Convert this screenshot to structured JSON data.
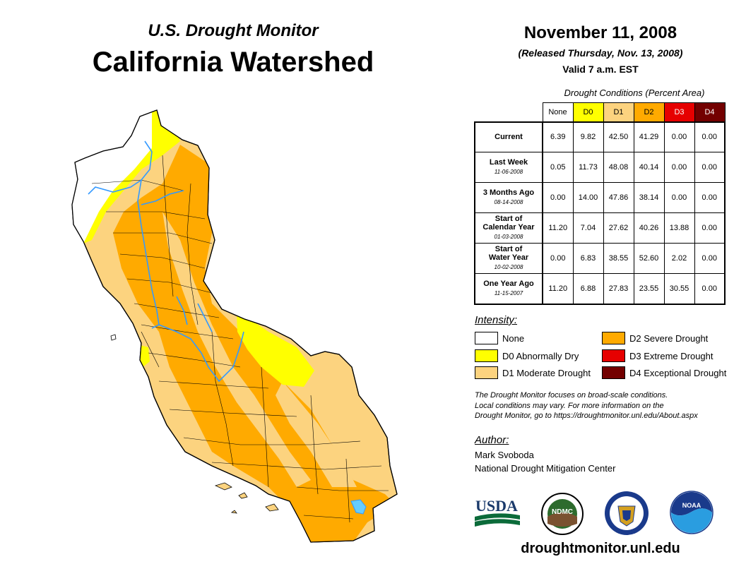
{
  "header": {
    "subtitle": "U.S. Drought Monitor",
    "title": "California Watershed",
    "date": "November 11, 2008",
    "released": "(Released Thursday, Nov. 13, 2008)",
    "valid": "Valid 7 a.m. EST"
  },
  "table": {
    "caption": "Drought Conditions (Percent Area)",
    "columns": [
      "None",
      "D0",
      "D1",
      "D2",
      "D3",
      "D4"
    ],
    "rows": [
      {
        "label": "Current",
        "label2": "",
        "date": "",
        "values": [
          "6.39",
          "9.82",
          "42.50",
          "41.29",
          "0.00",
          "0.00"
        ]
      },
      {
        "label": "Last Week",
        "label2": "",
        "date": "11-06-2008",
        "values": [
          "0.05",
          "11.73",
          "48.08",
          "40.14",
          "0.00",
          "0.00"
        ]
      },
      {
        "label": "3 Months Ago",
        "label2": "",
        "date": "08-14-2008",
        "values": [
          "0.00",
          "14.00",
          "47.86",
          "38.14",
          "0.00",
          "0.00"
        ]
      },
      {
        "label": "Start of",
        "label2": "Calendar Year",
        "date": "01-03-2008",
        "values": [
          "11.20",
          "7.04",
          "27.62",
          "40.26",
          "13.88",
          "0.00"
        ]
      },
      {
        "label": "Start of",
        "label2": "Water Year",
        "date": "10-02-2008",
        "values": [
          "0.00",
          "6.83",
          "38.55",
          "52.60",
          "2.02",
          "0.00"
        ]
      },
      {
        "label": "One Year Ago",
        "label2": "",
        "date": "11-15-2007",
        "values": [
          "11.20",
          "6.88",
          "27.83",
          "23.55",
          "30.55",
          "0.00"
        ]
      }
    ]
  },
  "legend": {
    "heading": "Intensity:",
    "items": [
      {
        "label": "None",
        "color": "#ffffff"
      },
      {
        "label": "D0 Abnormally Dry",
        "color": "#ffff00"
      },
      {
        "label": "D1 Moderate Drought",
        "color": "#fcd37f"
      },
      {
        "label": "D2 Severe Drought",
        "color": "#ffaa00"
      },
      {
        "label": "D3 Extreme Drought",
        "color": "#e60000"
      },
      {
        "label": "D4 Exceptional Drought",
        "color": "#730000"
      }
    ]
  },
  "note": {
    "line1": "The Drought Monitor focuses on broad-scale conditions.",
    "line2": "Local conditions may vary. For more information on the",
    "line3": "Drought Monitor, go to https://droughtmonitor.unl.edu/About.aspx"
  },
  "author": {
    "heading": "Author:",
    "name": "Mark Svoboda",
    "org": "National Drought Mitigation Center"
  },
  "logos": {
    "usda": "USDA",
    "ndmc": "NDMC",
    "noaa": "NOAA"
  },
  "website": "droughtmonitor.unl.edu",
  "colors": {
    "none": "#ffffff",
    "d0": "#ffff00",
    "d1": "#fcd37f",
    "d2": "#ffaa00",
    "d3": "#e60000",
    "d4": "#730000",
    "river": "#3399ff"
  }
}
